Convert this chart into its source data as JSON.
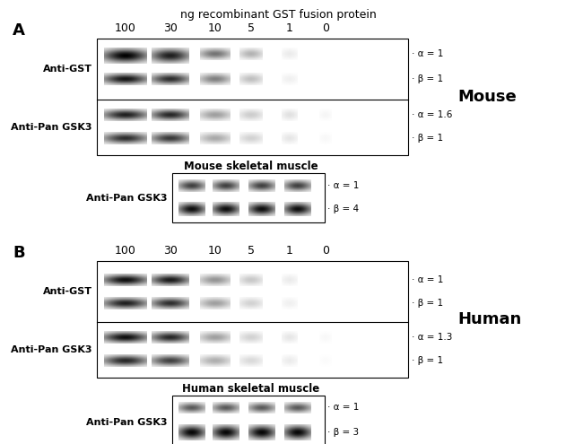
{
  "title": "ng recombinant GST fusion protein",
  "concentrations": [
    "100",
    "30",
    "10",
    "5",
    "1",
    "0"
  ],
  "panel_A": {
    "blot1_label": "Anti-GST",
    "blot2_label": "Anti-Pan GSK3",
    "blot3_label": "Anti-Pan GSK3",
    "muscle_label": "Mouse skeletal muscle",
    "species_label": "Mouse",
    "blot1_ann": [
      "· α = 1",
      "· β = 1"
    ],
    "blot2_ann": [
      "· α = 1.6",
      "· β = 1"
    ],
    "blot3_ann": [
      "· α = 1",
      "· β = 4"
    ]
  },
  "panel_B": {
    "blot1_label": "Anti-GST",
    "blot2_label": "Anti-Pan GSK3",
    "blot3_label": "Anti-Pan GSK3",
    "muscle_label": "Human skeletal muscle",
    "species_label": "Human",
    "blot1_ann": [
      "· α = 1",
      "· β = 1"
    ],
    "blot2_ann": [
      "· α = 1.3",
      "· β = 1"
    ],
    "blot3_ann": [
      "· α = 1",
      "· β = 3"
    ]
  }
}
